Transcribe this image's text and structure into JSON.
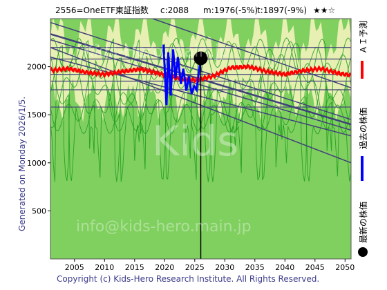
{
  "header": {
    "ticker": "2556=OneETF東証指数",
    "current": "c:2088",
    "m_value": "m:1976(-5%)",
    "t_value": "t:1897(-9%)",
    "stars": "★★☆"
  },
  "side_label": "Generated on Monday 2026/1/5.",
  "copyright": "Copyright (c) Kids-Hero Research Institute. All Rights Reserved.",
  "watermarks": [
    "Kids-Hero.main.jp",
    "Kids",
    "info@kids-hero.main.jp"
  ],
  "legend": [
    {
      "label": "ＡＩ予測",
      "color": "#ff0000"
    },
    {
      "label": "過去の株価",
      "color": "#0000ff"
    },
    {
      "label": "最新の株価",
      "color": "#000000"
    }
  ],
  "colors": {
    "background": "#80d060",
    "band": "#f2f2bb",
    "green_line": "#1a9a1a",
    "trend_line": "#40407a",
    "ai_line": "#ff0000",
    "price_line": "#0000ff"
  },
  "chart_data": {
    "type": "line",
    "xlim": [
      2001,
      2051
    ],
    "ylim": [
      0,
      2500
    ],
    "x_ticks": [
      "2005",
      "2010",
      "2015",
      "2020",
      "2025",
      "2030",
      "2035",
      "2040",
      "2045",
      "2050"
    ],
    "y_ticks": [
      "500",
      "1000",
      "1500",
      "2000"
    ],
    "latest_point": {
      "x": 2026.0,
      "y": 2088
    },
    "horizontal_lines": [
      2200,
      2080,
      1920,
      1850,
      1760,
      1580
    ],
    "trend_lines": [
      {
        "x1": 2001,
        "y1": 2460,
        "x2": 2051,
        "y2": 1450
      },
      {
        "x1": 2001,
        "y1": 2340,
        "x2": 2051,
        "y2": 1400
      },
      {
        "x1": 2001,
        "y1": 2280,
        "x2": 2051,
        "y2": 1340
      },
      {
        "x1": 2001,
        "y1": 2200,
        "x2": 2051,
        "y2": 1000
      },
      {
        "x1": 2001,
        "y1": 2100,
        "x2": 2051,
        "y2": 1280
      },
      {
        "x1": 2018,
        "y1": 2500,
        "x2": 2051,
        "y2": 1780
      }
    ],
    "series": [
      {
        "name": "ＡＩ予測",
        "x": [
          2001,
          2004,
          2007,
          2010,
          2013,
          2016,
          2019,
          2022,
          2025,
          2028,
          2031,
          2034,
          2037,
          2040,
          2043,
          2046,
          2049,
          2051
        ],
        "y": [
          1960,
          1980,
          1940,
          1920,
          1950,
          1975,
          1930,
          1880,
          1860,
          1900,
          1990,
          2000,
          1950,
          1920,
          1960,
          1980,
          1930,
          1910
        ]
      },
      {
        "name": "過去の株価",
        "x": [
          2019.8,
          2020.3,
          2020.6,
          2021.0,
          2021.4,
          2021.8,
          2022.2,
          2022.7,
          2023.1,
          2023.6,
          2024.0,
          2024.5,
          2024.9,
          2025.3,
          2025.7,
          2026.0
        ],
        "y": [
          2230,
          1600,
          2150,
          1700,
          2180,
          1880,
          2100,
          1820,
          1980,
          1750,
          1900,
          1720,
          1800,
          1760,
          1950,
          2088
        ]
      }
    ]
  }
}
